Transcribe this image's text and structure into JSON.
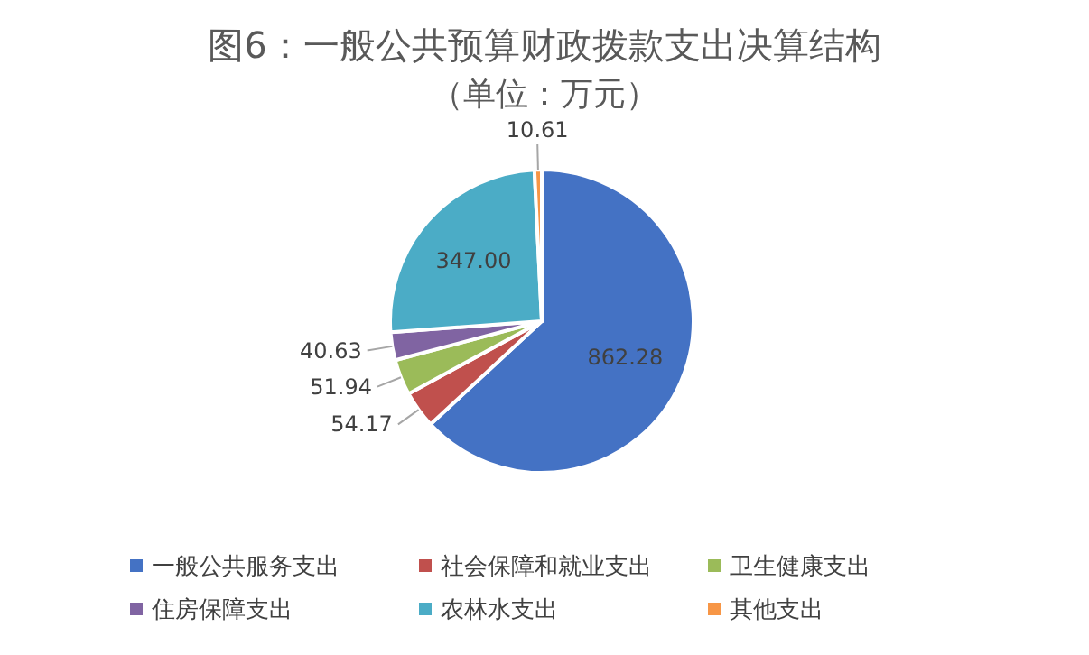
{
  "chart_data": {
    "type": "pie",
    "title": "图6：一般公共预算财政拨款支出决算结构",
    "subtitle": "（单位：万元）",
    "categories": [
      "一般公共服务支出",
      "社会保障和就业支出",
      "卫生健康支出",
      "住房保障支出",
      "农林水支出",
      "其他支出"
    ],
    "values": [
      862.28,
      54.17,
      51.94,
      40.63,
      347.0,
      10.61
    ],
    "colors": [
      "#4472c4",
      "#c0504d",
      "#9bbb59",
      "#8064a2",
      "#4bacc6",
      "#f79646"
    ],
    "value_labels": [
      "862.28",
      "54.17",
      "51.94",
      "40.63",
      "347.00",
      "10.61"
    ],
    "legend": "bottom"
  }
}
